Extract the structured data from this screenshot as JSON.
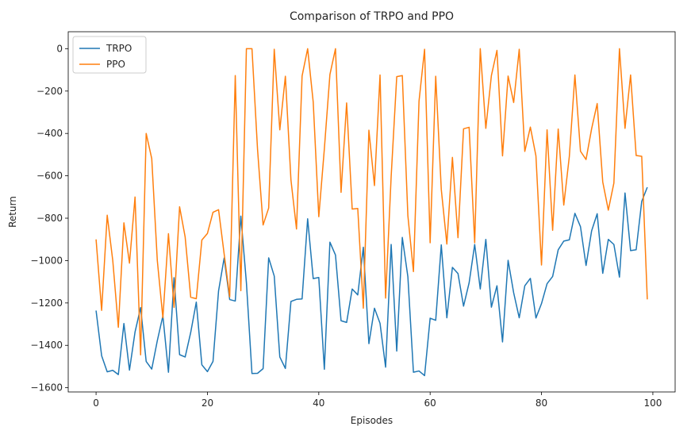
{
  "chart_data": {
    "type": "line",
    "title": "Comparison of TRPO and PPO",
    "xlabel": "Episodes",
    "ylabel": "Return",
    "xlim": [
      -5,
      104
    ],
    "ylim": [
      -1620,
      80
    ],
    "xticks": [
      0,
      20,
      40,
      60,
      80,
      100
    ],
    "yticks": [
      -1600,
      -1400,
      -1200,
      -1000,
      -800,
      -600,
      -400,
      -200,
      0
    ],
    "grid": false,
    "legend": "upper-left",
    "series": [
      {
        "name": "TRPO",
        "color": "#1f77b4",
        "values": [
          -1236,
          -1449,
          -1525,
          -1518,
          -1538,
          -1297,
          -1517,
          -1337,
          -1222,
          -1476,
          -1512,
          -1378,
          -1261,
          -1527,
          -1081,
          -1444,
          -1455,
          -1339,
          -1196,
          -1492,
          -1524,
          -1476,
          -1143,
          -988,
          -1184,
          -1191,
          -790,
          -1104,
          -1533,
          -1532,
          -1510,
          -987,
          -1073,
          -1455,
          -1509,
          -1193,
          -1183,
          -1181,
          -803,
          -1085,
          -1080,
          -1513,
          -913,
          -974,
          -1284,
          -1292,
          -1134,
          -1162,
          -937,
          -1392,
          -1225,
          -1296,
          -1503,
          -924,
          -1427,
          -891,
          -1076,
          -1527,
          -1521,
          -1543,
          -1272,
          -1282,
          -926,
          -1270,
          -1032,
          -1061,
          -1215,
          -1105,
          -924,
          -1134,
          -900,
          -1220,
          -1119,
          -1384,
          -999,
          -1152,
          -1270,
          -1119,
          -1084,
          -1271,
          -1203,
          -1109,
          -1075,
          -949,
          -908,
          -902,
          -777,
          -840,
          -1023,
          -860,
          -779,
          -1060,
          -900,
          -924,
          -1078,
          -681,
          -953,
          -949,
          -721,
          -654
        ]
      },
      {
        "name": "PPO",
        "color": "#ff7f0e",
        "values": [
          -900,
          -1235,
          -786,
          -1000,
          -1315,
          -822,
          -1012,
          -700,
          -1445,
          -400,
          -519,
          -1000,
          -1270,
          -873,
          -1221,
          -746,
          -889,
          -1173,
          -1180,
          -903,
          -872,
          -772,
          -760,
          -968,
          -1171,
          -127,
          -1142,
          0,
          0,
          -475,
          -832,
          -752,
          -3,
          -383,
          -130,
          -619,
          -851,
          -129,
          0,
          -252,
          -793,
          -473,
          -122,
          0,
          -678,
          -256,
          -757,
          -754,
          -1225,
          -385,
          -646,
          -124,
          -1177,
          -603,
          -132,
          -127,
          -788,
          -1052,
          -248,
          -3,
          -916,
          -130,
          -664,
          -922,
          -513,
          -892,
          -378,
          -371,
          -916,
          0,
          -376,
          -127,
          -8,
          -506,
          -129,
          -254,
          -3,
          -485,
          -370,
          -506,
          -1021,
          -383,
          -857,
          -379,
          -738,
          -508,
          -124,
          -484,
          -523,
          -378,
          -259,
          -629,
          -762,
          -634,
          0,
          -376,
          -124,
          -504,
          -508,
          -1183
        ]
      }
    ]
  }
}
